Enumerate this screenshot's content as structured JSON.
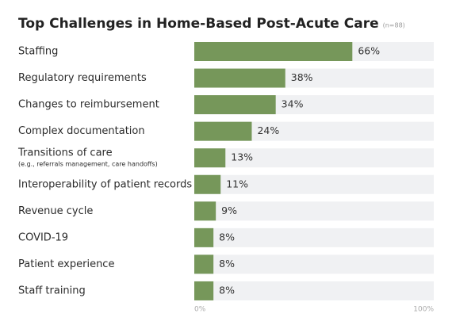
{
  "chart_data": {
    "type": "bar",
    "orientation": "horizontal",
    "title": "Top Challenges in Home-Based Post-Acute Care",
    "subtitle": "(n=88)",
    "categories": [
      "Staffing",
      "Regulatory requirements",
      "Changes to reimbursement",
      "Complex documentation",
      "Transitions of care",
      "Interoperability of patient records",
      "Revenue cycle",
      "COVID-19",
      "Patient experience",
      "Staff training"
    ],
    "category_notes": [
      null,
      null,
      null,
      null,
      "(e.g., referrals management, care handoffs)",
      null,
      null,
      null,
      null,
      null
    ],
    "values": [
      66,
      38,
      34,
      24,
      13,
      11,
      9,
      8,
      8,
      8
    ],
    "value_labels": [
      "66%",
      "38%",
      "34%",
      "24%",
      "13%",
      "11%",
      "9%",
      "8%",
      "8%",
      "8%"
    ],
    "color": "#76975a",
    "track_color": "#f0f1f3",
    "xlim": [
      0,
      100
    ],
    "xticks": [
      {
        "value": 0,
        "label": "0%"
      },
      {
        "value": 100,
        "label": "100%"
      }
    ]
  }
}
